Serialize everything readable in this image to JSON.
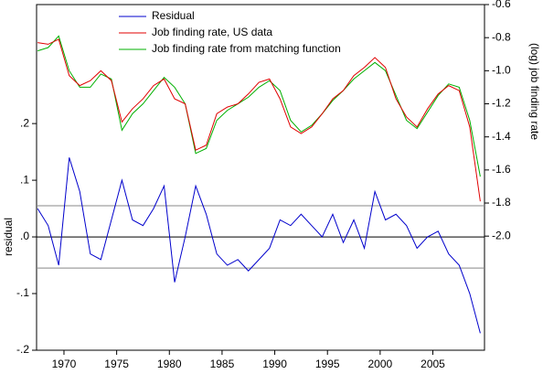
{
  "chart_data": {
    "type": "line",
    "x": [
      1967.5,
      1968.5,
      1969.5,
      1970.5,
      1971.5,
      1972.5,
      1973.5,
      1974.5,
      1975.5,
      1976.5,
      1977.5,
      1978.5,
      1979.5,
      1980.5,
      1981.5,
      1982.5,
      1983.5,
      1984.5,
      1985.5,
      1986.5,
      1987.5,
      1988.5,
      1989.5,
      1990.5,
      1991.5,
      1992.5,
      1993.5,
      1994.5,
      1995.5,
      1996.5,
      1997.5,
      1998.5,
      1999.5,
      2000.5,
      2001.5,
      2002.5,
      2003.5,
      2004.5,
      2005.5,
      2006.5,
      2007.5,
      2008.5,
      2009.5
    ],
    "series": [
      {
        "name": "Residual",
        "color": "#0000cc",
        "axis": "y",
        "values": [
          0.05,
          0.02,
          -0.05,
          0.14,
          0.08,
          -0.03,
          -0.04,
          0.03,
          0.1,
          0.03,
          0.02,
          0.05,
          0.09,
          -0.08,
          0.0,
          0.09,
          0.04,
          -0.03,
          -0.05,
          -0.04,
          -0.06,
          -0.04,
          -0.02,
          0.03,
          0.02,
          0.04,
          0.02,
          0.0,
          0.04,
          -0.01,
          0.03,
          -0.02,
          0.08,
          0.03,
          0.04,
          0.02,
          -0.02,
          0.0,
          0.01,
          -0.03,
          -0.05,
          -0.1,
          -0.17
        ]
      },
      {
        "name": "Job finding rate, US data",
        "color": "#e00000",
        "axis": "y2",
        "values": [
          -0.83,
          -0.84,
          -0.81,
          -1.03,
          -1.09,
          -1.06,
          -1.0,
          -1.06,
          -1.31,
          -1.23,
          -1.17,
          -1.09,
          -1.05,
          -1.17,
          -1.2,
          -1.48,
          -1.45,
          -1.26,
          -1.22,
          -1.2,
          -1.14,
          -1.07,
          -1.05,
          -1.17,
          -1.34,
          -1.38,
          -1.34,
          -1.26,
          -1.17,
          -1.12,
          -1.03,
          -0.98,
          -0.92,
          -0.98,
          -1.17,
          -1.28,
          -1.34,
          -1.23,
          -1.14,
          -1.09,
          -1.12,
          -1.34,
          -1.79
        ]
      },
      {
        "name": "Job finding rate from matching function",
        "color": "#00b000",
        "axis": "y2",
        "values": [
          -0.88,
          -0.86,
          -0.79,
          -1.0,
          -1.1,
          -1.1,
          -1.02,
          -1.05,
          -1.36,
          -1.26,
          -1.2,
          -1.12,
          -1.04,
          -1.1,
          -1.2,
          -1.5,
          -1.47,
          -1.3,
          -1.24,
          -1.2,
          -1.16,
          -1.1,
          -1.06,
          -1.12,
          -1.3,
          -1.37,
          -1.33,
          -1.26,
          -1.18,
          -1.12,
          -1.05,
          -1.0,
          -0.95,
          -1.0,
          -1.15,
          -1.3,
          -1.35,
          -1.25,
          -1.15,
          -1.08,
          -1.1,
          -1.3,
          -1.64
        ]
      }
    ],
    "ylabel": "residual",
    "y2label": "(log) job finding rate",
    "xlim": [
      1967.4,
      2009.9
    ],
    "xticks": [
      1970,
      1975,
      1980,
      1985,
      1990,
      1995,
      2000,
      2005
    ],
    "ylim": [
      -0.2,
      0.41
    ],
    "yticks": [
      {
        "value": -0.2,
        "label": "-.2"
      },
      {
        "value": -0.1,
        "label": "-.1"
      },
      {
        "value": 0,
        "label": ".0"
      },
      {
        "value": 0.1,
        "label": ".1"
      },
      {
        "value": 0.2,
        "label": ".2"
      }
    ],
    "y2lim": [
      -2.69,
      -0.6
    ],
    "y2ticks": [
      {
        "value": -2.0,
        "label": "-2.0"
      },
      -1.8,
      -1.6,
      -1.4,
      -1.2,
      {
        "value": -1.0,
        "label": "-1.0"
      },
      -0.8,
      -0.6
    ],
    "hlines": [
      0,
      0.055,
      -0.055
    ]
  }
}
